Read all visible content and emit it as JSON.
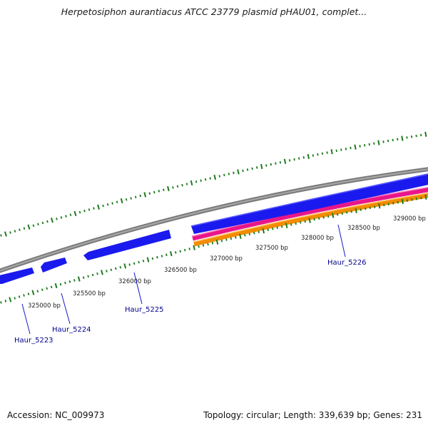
{
  "title": "Herpetosiphon aurantiacus ATCC 23779 plasmid pHAU01, complet...",
  "footer": {
    "accession": "Accession: NC_009973",
    "stats": "Topology: circular; Length: 339,639 bp; Genes: 231"
  },
  "scale": {
    "labels": [
      "325000 bp",
      "325500 bp",
      "326000 bp",
      "326500 bp",
      "327000 bp",
      "327500 bp",
      "328000 bp",
      "328500 bp",
      "329000 bp"
    ]
  },
  "genes": [
    {
      "label": "Haur_5223"
    },
    {
      "label": "Haur_5224"
    },
    {
      "label": "Haur_5225"
    },
    {
      "label": "Haur_5226"
    }
  ],
  "colors": {
    "backbone": "#8a8a8a",
    "cds": "#1a1aee",
    "magenta_track": "#e8168a",
    "orange_track": "#f28c00",
    "ticks": "#1e7a1e",
    "gene_label": "#00008b"
  }
}
